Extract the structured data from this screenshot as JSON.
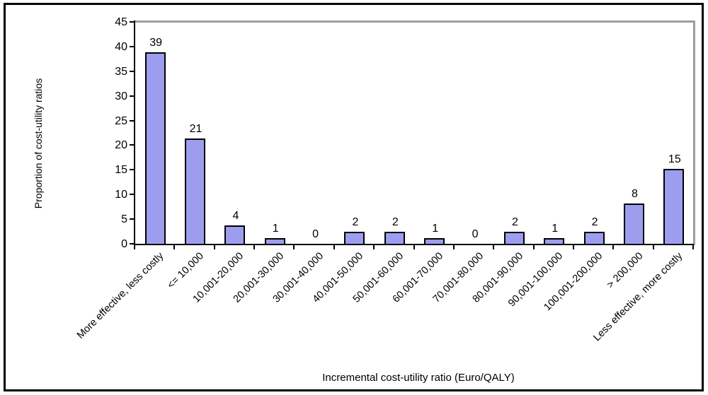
{
  "figure": {
    "background": "#ffffff",
    "outer_border_color": "#000000"
  },
  "chart_data": {
    "type": "bar",
    "title": "",
    "xlabel": "Incremental cost-utility ratio (Euro/QALY)",
    "ylabel": "Proportion of cost-utility ratios",
    "ylim": [
      0,
      45
    ],
    "ytick_step": 5,
    "yticks": [
      0,
      5,
      10,
      15,
      20,
      25,
      30,
      35,
      40,
      45
    ],
    "grid": false,
    "legend": false,
    "categories": [
      "More effective, less costly",
      "<= 10,000",
      "10,001-20,000",
      "20,001-30,000",
      "30,001-40,000",
      "40,001-50,000",
      "50,001-60,000",
      "60,001-70,000",
      "70,001-80,000",
      "80,001-90,000",
      "90,001-100,000",
      "100,001-200,000",
      "> 200,000",
      "Less effective, more costly"
    ],
    "values": [
      38.8,
      21.3,
      3.7,
      1.2,
      0,
      2.4,
      2.4,
      1.2,
      0,
      2.4,
      1.2,
      2.4,
      8.2,
      15.2
    ],
    "bar_labels": [
      "39",
      "21",
      "4",
      "1",
      "0",
      "2",
      "2",
      "1",
      "0",
      "2",
      "1",
      "2",
      "8",
      "15"
    ],
    "colors": {
      "bar_fill": "#9d9df0",
      "bar_border": "#000000",
      "plot_border_gray": "#9e9e9e",
      "axis_color": "#000000",
      "text_color": "#000000"
    }
  }
}
